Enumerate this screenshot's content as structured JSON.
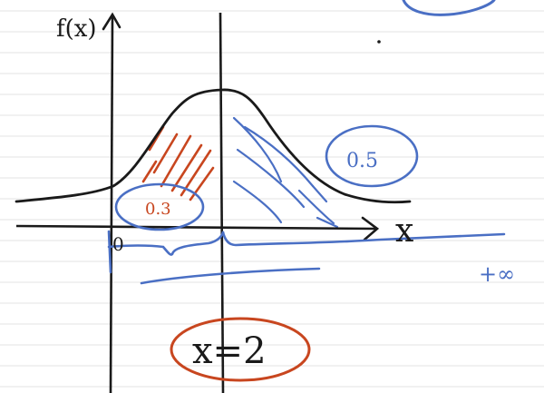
{
  "colors": {
    "paper": "#ffffff",
    "rule_line": "#e3e3e3",
    "black_ink": "#1a1a1a",
    "blue_ink": "#4a6fc4",
    "orange_ink": "#c8461f"
  },
  "labels": {
    "y_axis": "f(x)",
    "x_axis": "x",
    "left_area": "0.3",
    "right_area": "0.5",
    "mean_marker": "x=2",
    "origin": "0",
    "infinity": "+∞"
  }
}
